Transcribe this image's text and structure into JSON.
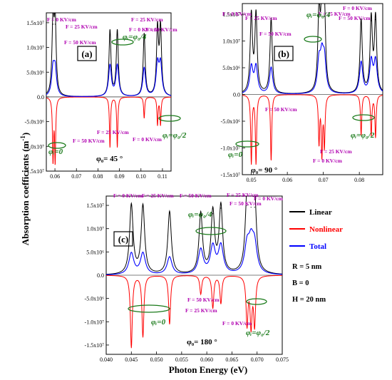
{
  "figure": {
    "ylabel": "Absorption coefficients (m",
    "ylabel_sup": "-1",
    "ylabel_end": ")",
    "xlabel": "Photon Energy (eV)"
  },
  "legend": {
    "entries": [
      {
        "label": "Linear",
        "color": "#000000"
      },
      {
        "label": "Nonlinear",
        "color": "#ff0000"
      },
      {
        "label": "Total",
        "color": "#0000ff"
      }
    ],
    "params": [
      "R = 5 nm",
      "B = 0",
      "H = 20 nm"
    ]
  },
  "chart_data": [
    {
      "type": "line",
      "panel_label": "(a)",
      "phi0_text": "φ₀= 45 °",
      "xticks": [
        "0.06",
        "0.07",
        "0.08",
        "0.09",
        "0.10",
        "0.11"
      ],
      "yticks": [
        "1.5x10⁷",
        "1.0x10⁷",
        "5.0x10⁶",
        "0.0",
        "-5.0x10⁶",
        "-1.0x10⁷",
        "-1.5x10⁷"
      ],
      "xlim": [
        0.056,
        0.114
      ],
      "ylim": [
        -15000000,
        17000000
      ],
      "peaks": [
        {
          "x": 0.0591,
          "h": 14700000,
          "n": -12600000,
          "t": 5200000
        },
        {
          "x": 0.0601,
          "h": 14700000,
          "n": -12800000,
          "t": 5200000
        },
        {
          "x": 0.0856,
          "h": 13300000,
          "n": -10200000,
          "t": 6300000
        },
        {
          "x": 0.089,
          "h": 13300000,
          "n": -10200000,
          "t": 6300000
        },
        {
          "x": 0.1015,
          "h": 12700000,
          "n": -4300000,
          "t": 5800000
        },
        {
          "x": 0.1077,
          "h": 13400000,
          "n": -5600000,
          "t": 6300000
        },
        {
          "x": 0.1091,
          "h": 13600000,
          "n": -5600000,
          "t": 6300000
        }
      ],
      "labels": [
        {
          "text": "F = 0 KV/cm",
          "cls": "ann"
        },
        {
          "text": "F = 25 KV/cm",
          "cls": "ann"
        },
        {
          "text": "F = 50 KV/cm",
          "cls": "ann"
        },
        {
          "text": "F = 25 KV/cm",
          "cls": "ann"
        },
        {
          "text": "F = 0 KV/cm",
          "cls": "ann"
        },
        {
          "text": "F = 50 KV/cm",
          "cls": "ann"
        },
        {
          "text": "F = 50 KV/cm",
          "cls": "ann"
        },
        {
          "text": "F = 25 KV/cm",
          "cls": "ann"
        },
        {
          "text": "F = 0 KV/cm",
          "cls": "ann"
        },
        {
          "text": "φᵢ=φ₀/4",
          "cls": "phi"
        },
        {
          "text": "φᵢ=φ₀/2",
          "cls": "phi"
        },
        {
          "text": "φᵢ=0",
          "cls": "phi"
        }
      ]
    },
    {
      "type": "line",
      "panel_label": "(b)",
      "phi0_text": "φ₀= 90 °",
      "xticks": [
        "0.05",
        "0.06",
        "0.07",
        "0.08"
      ],
      "yticks": [
        "1.5x10⁷",
        "1.0x10⁷",
        "5.0x10⁶",
        "0.0",
        "-5.0x10⁶",
        "-1.0x10⁷",
        "-1.5x10⁷"
      ],
      "xlim": [
        0.0475,
        0.0865
      ],
      "ylim": [
        -15000000,
        17000000
      ],
      "peaks": [
        {
          "x": 0.05,
          "h": 14600000,
          "n": -12800000,
          "t": 5000000
        },
        {
          "x": 0.0513,
          "h": 14600000,
          "n": -12800000,
          "t": 5000000
        },
        {
          "x": 0.0555,
          "h": 14100000,
          "n": -12400000,
          "t": 5000000
        },
        {
          "x": 0.0688,
          "h": 14500000,
          "n": -8900000,
          "t": 5500000
        },
        {
          "x": 0.0696,
          "h": 14600000,
          "n": -10900000,
          "t": 5800000
        },
        {
          "x": 0.0703,
          "h": 14700000,
          "n": -9400000,
          "t": 5800000
        },
        {
          "x": 0.0805,
          "h": 13800000,
          "n": -7600000,
          "t": 5900000
        },
        {
          "x": 0.0833,
          "h": 13800000,
          "n": -7600000,
          "t": 5900000
        },
        {
          "x": 0.0845,
          "h": 14000000,
          "n": -7900000,
          "t": 6000000
        }
      ],
      "labels": [
        {
          "text": "F = 0 KV/cm",
          "cls": "ann"
        },
        {
          "text": "F = 25 KV/cm",
          "cls": "ann"
        },
        {
          "text": "F = 50 KV/cm",
          "cls": "ann"
        },
        {
          "text": "F = 25 KV/cm",
          "cls": "ann"
        },
        {
          "text": "F = 0 KV/cm",
          "cls": "ann"
        },
        {
          "text": "F = 50 KV/cm",
          "cls": "ann"
        },
        {
          "text": "F = 50 KV/cm",
          "cls": "ann"
        },
        {
          "text": "F = 0 KV/cm",
          "cls": "ann"
        },
        {
          "text": "F = 25 KV/cm",
          "cls": "ann"
        },
        {
          "text": "φᵢ=φ₀/4",
          "cls": "phi"
        },
        {
          "text": "φᵢ=φ₀/2",
          "cls": "phi"
        },
        {
          "text": "φᵢ=0",
          "cls": "phi"
        }
      ]
    },
    {
      "type": "line",
      "panel_label": "(c)",
      "phi0_text": "φ₀= 180 °",
      "xticks": [
        "0.040",
        "0.045",
        "0.050",
        "0.055",
        "0.060",
        "0.065",
        "0.070",
        "0.075"
      ],
      "yticks": [
        "1.5x10⁷",
        "1.0x10⁷",
        "5.0x10⁶",
        "0.0",
        "-5.0x10⁶",
        "-1.0x10⁷",
        "-1.5x10⁷"
      ],
      "xlim": [
        0.04,
        0.075
      ],
      "ylim": [
        -17000000,
        17000000
      ],
      "peaks": [
        {
          "x": 0.045,
          "h": 14900000,
          "n": -15500000,
          "t": 4600000
        },
        {
          "x": 0.0473,
          "h": 14700000,
          "n": -13200000,
          "t": 4600000
        },
        {
          "x": 0.0526,
          "h": 13500000,
          "n": -10500000,
          "t": 3800000
        },
        {
          "x": 0.0588,
          "h": 13000000,
          "n": -4000000,
          "t": 5300000
        },
        {
          "x": 0.0612,
          "h": 13200000,
          "n": -7000000,
          "t": 5800000
        },
        {
          "x": 0.0628,
          "h": 14400000,
          "n": -6000000,
          "t": 6000000
        },
        {
          "x": 0.068,
          "h": 15000000,
          "n": -10400000,
          "t": 5600000
        },
        {
          "x": 0.0688,
          "h": 14600000,
          "n": -10400000,
          "t": 5600000
        },
        {
          "x": 0.0695,
          "h": 14600000,
          "n": -10400000,
          "t": 5600000
        }
      ],
      "labels": [
        {
          "text": "F = 0 KV/cm",
          "cls": "ann"
        },
        {
          "text": "F = 25 KV/cm",
          "cls": "ann"
        },
        {
          "text": "F = 50 KV/cm",
          "cls": "ann"
        },
        {
          "text": "F = 25 KV/cm",
          "cls": "ann"
        },
        {
          "text": "F = 0 KV/cm",
          "cls": "ann"
        },
        {
          "text": "F = 50 KV/cm",
          "cls": "ann"
        },
        {
          "text": "F = 50 KV/cm",
          "cls": "ann"
        },
        {
          "text": "F = 25 KV/cm",
          "cls": "ann"
        },
        {
          "text": "F = 0 KV/cm",
          "cls": "ann"
        },
        {
          "text": "φᵢ=φ₀/4",
          "cls": "phi"
        },
        {
          "text": "φᵢ=φ₀/2",
          "cls": "phi"
        },
        {
          "text": "φᵢ=0",
          "cls": "phi"
        }
      ]
    }
  ]
}
